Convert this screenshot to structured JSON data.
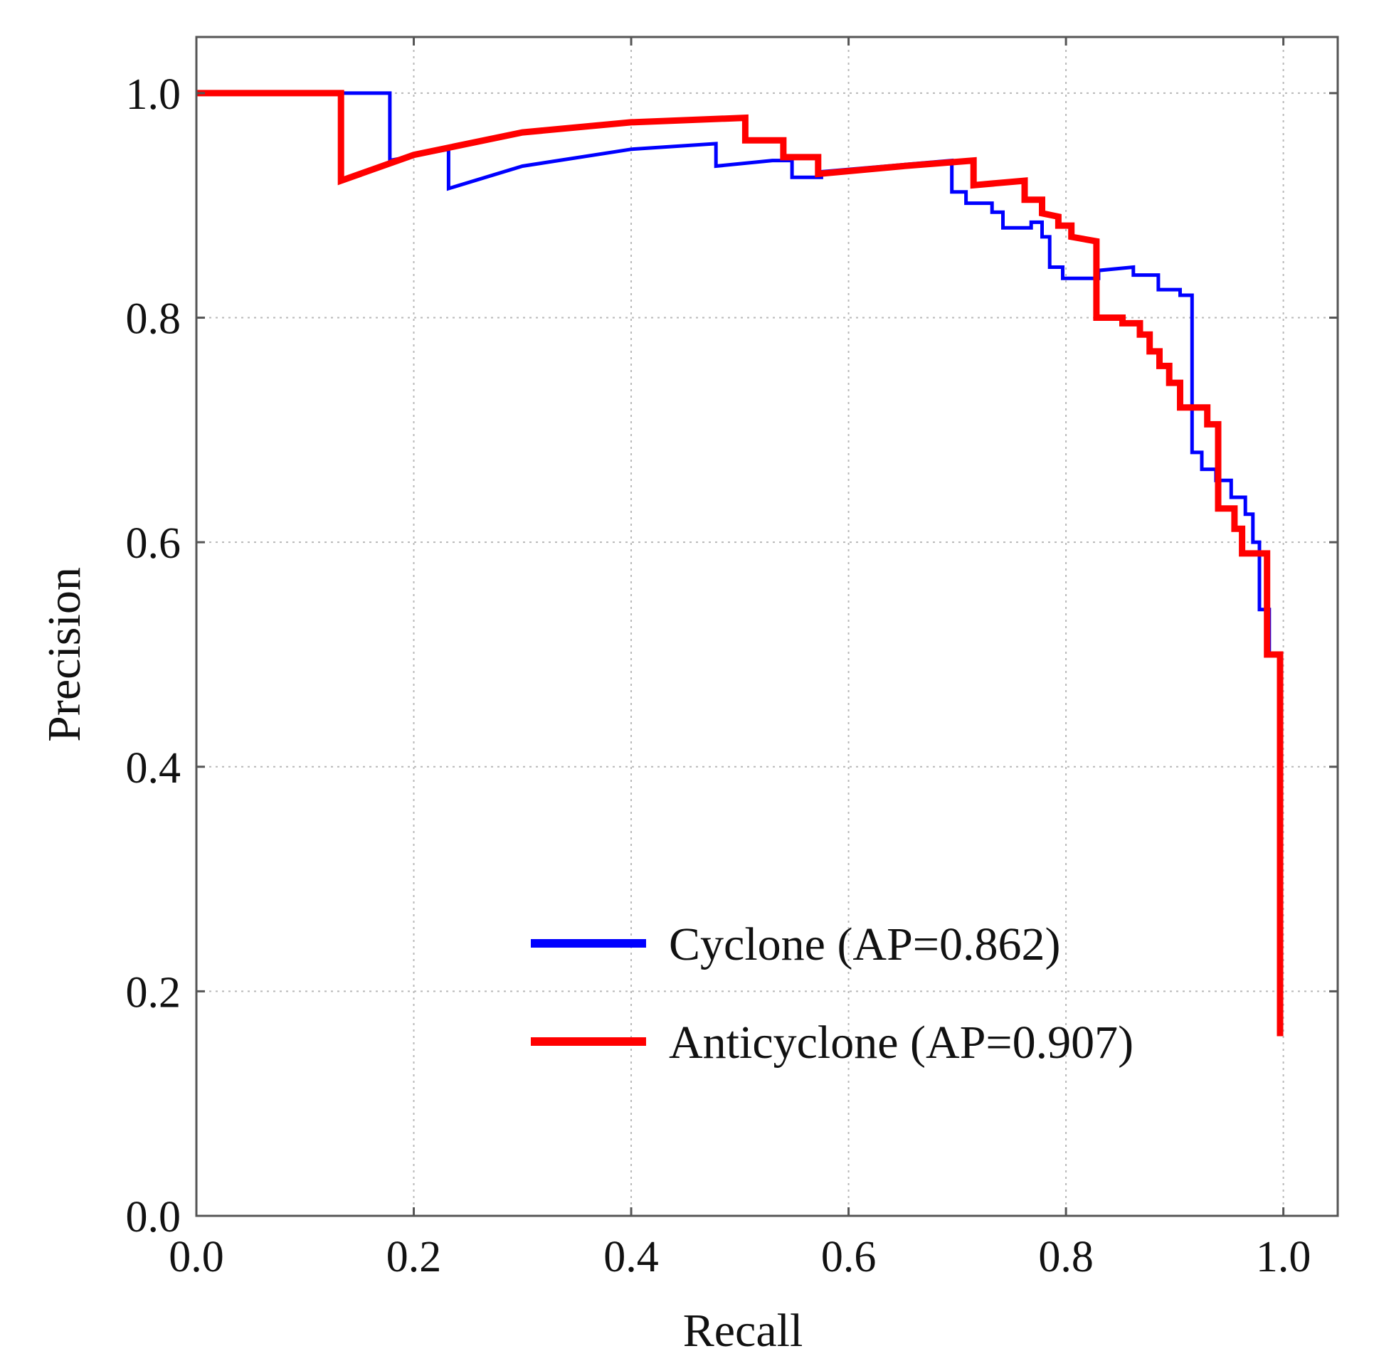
{
  "chart_data": {
    "type": "line",
    "title": "",
    "xlabel": "Recall",
    "ylabel": "Precision",
    "xlim": [
      0.0,
      1.05
    ],
    "ylim": [
      0.0,
      1.05
    ],
    "xticks": [
      "0.0",
      "0.2",
      "0.4",
      "0.6",
      "0.8",
      "1.0"
    ],
    "yticks": [
      "0.0",
      "0.2",
      "0.4",
      "0.6",
      "0.8",
      "1.0"
    ],
    "grid": true,
    "legend_position": "lower-right",
    "series": [
      {
        "name": "Cyclone (AP=0.862)",
        "color": "#0000ff",
        "points": [
          [
            0.0,
            1.0
          ],
          [
            0.178,
            1.0
          ],
          [
            0.178,
            0.94
          ],
          [
            0.232,
            0.95
          ],
          [
            0.232,
            0.915
          ],
          [
            0.3,
            0.935
          ],
          [
            0.4,
            0.95
          ],
          [
            0.478,
            0.955
          ],
          [
            0.478,
            0.935
          ],
          [
            0.53,
            0.94
          ],
          [
            0.548,
            0.94
          ],
          [
            0.548,
            0.925
          ],
          [
            0.575,
            0.925
          ],
          [
            0.575,
            0.93
          ],
          [
            0.695,
            0.94
          ],
          [
            0.695,
            0.912
          ],
          [
            0.708,
            0.912
          ],
          [
            0.708,
            0.902
          ],
          [
            0.732,
            0.902
          ],
          [
            0.732,
            0.894
          ],
          [
            0.742,
            0.894
          ],
          [
            0.742,
            0.88
          ],
          [
            0.768,
            0.88
          ],
          [
            0.768,
            0.885
          ],
          [
            0.778,
            0.885
          ],
          [
            0.778,
            0.872
          ],
          [
            0.785,
            0.872
          ],
          [
            0.785,
            0.845
          ],
          [
            0.797,
            0.845
          ],
          [
            0.797,
            0.835
          ],
          [
            0.83,
            0.835
          ],
          [
            0.83,
            0.842
          ],
          [
            0.862,
            0.845
          ],
          [
            0.862,
            0.838
          ],
          [
            0.885,
            0.838
          ],
          [
            0.885,
            0.825
          ],
          [
            0.905,
            0.825
          ],
          [
            0.905,
            0.82
          ],
          [
            0.916,
            0.82
          ],
          [
            0.916,
            0.68
          ],
          [
            0.925,
            0.68
          ],
          [
            0.925,
            0.665
          ],
          [
            0.938,
            0.665
          ],
          [
            0.938,
            0.655
          ],
          [
            0.952,
            0.655
          ],
          [
            0.952,
            0.64
          ],
          [
            0.965,
            0.64
          ],
          [
            0.965,
            0.625
          ],
          [
            0.972,
            0.625
          ],
          [
            0.972,
            0.6
          ],
          [
            0.978,
            0.6
          ],
          [
            0.978,
            0.54
          ],
          [
            0.987,
            0.54
          ],
          [
            0.987,
            0.5
          ],
          [
            0.998,
            0.5
          ],
          [
            0.998,
            0.49
          ]
        ]
      },
      {
        "name": "Anticyclone (AP=0.907)",
        "color": "#ff0000",
        "points": [
          [
            0.0,
            1.0
          ],
          [
            0.133,
            1.0
          ],
          [
            0.133,
            0.922
          ],
          [
            0.2,
            0.945
          ],
          [
            0.3,
            0.965
          ],
          [
            0.4,
            0.974
          ],
          [
            0.505,
            0.978
          ],
          [
            0.505,
            0.958
          ],
          [
            0.54,
            0.958
          ],
          [
            0.54,
            0.943
          ],
          [
            0.572,
            0.943
          ],
          [
            0.572,
            0.928
          ],
          [
            0.65,
            0.935
          ],
          [
            0.715,
            0.94
          ],
          [
            0.715,
            0.918
          ],
          [
            0.762,
            0.922
          ],
          [
            0.762,
            0.905
          ],
          [
            0.778,
            0.905
          ],
          [
            0.778,
            0.893
          ],
          [
            0.793,
            0.89
          ],
          [
            0.793,
            0.882
          ],
          [
            0.805,
            0.882
          ],
          [
            0.805,
            0.872
          ],
          [
            0.828,
            0.868
          ],
          [
            0.828,
            0.8
          ],
          [
            0.852,
            0.8
          ],
          [
            0.852,
            0.795
          ],
          [
            0.868,
            0.795
          ],
          [
            0.868,
            0.785
          ],
          [
            0.877,
            0.785
          ],
          [
            0.877,
            0.77
          ],
          [
            0.886,
            0.77
          ],
          [
            0.886,
            0.757
          ],
          [
            0.895,
            0.757
          ],
          [
            0.895,
            0.742
          ],
          [
            0.905,
            0.742
          ],
          [
            0.905,
            0.72
          ],
          [
            0.93,
            0.72
          ],
          [
            0.93,
            0.705
          ],
          [
            0.94,
            0.705
          ],
          [
            0.94,
            0.63
          ],
          [
            0.955,
            0.63
          ],
          [
            0.955,
            0.612
          ],
          [
            0.962,
            0.612
          ],
          [
            0.962,
            0.59
          ],
          [
            0.985,
            0.59
          ],
          [
            0.985,
            0.5
          ],
          [
            0.997,
            0.5
          ],
          [
            0.997,
            0.16
          ]
        ]
      }
    ]
  }
}
